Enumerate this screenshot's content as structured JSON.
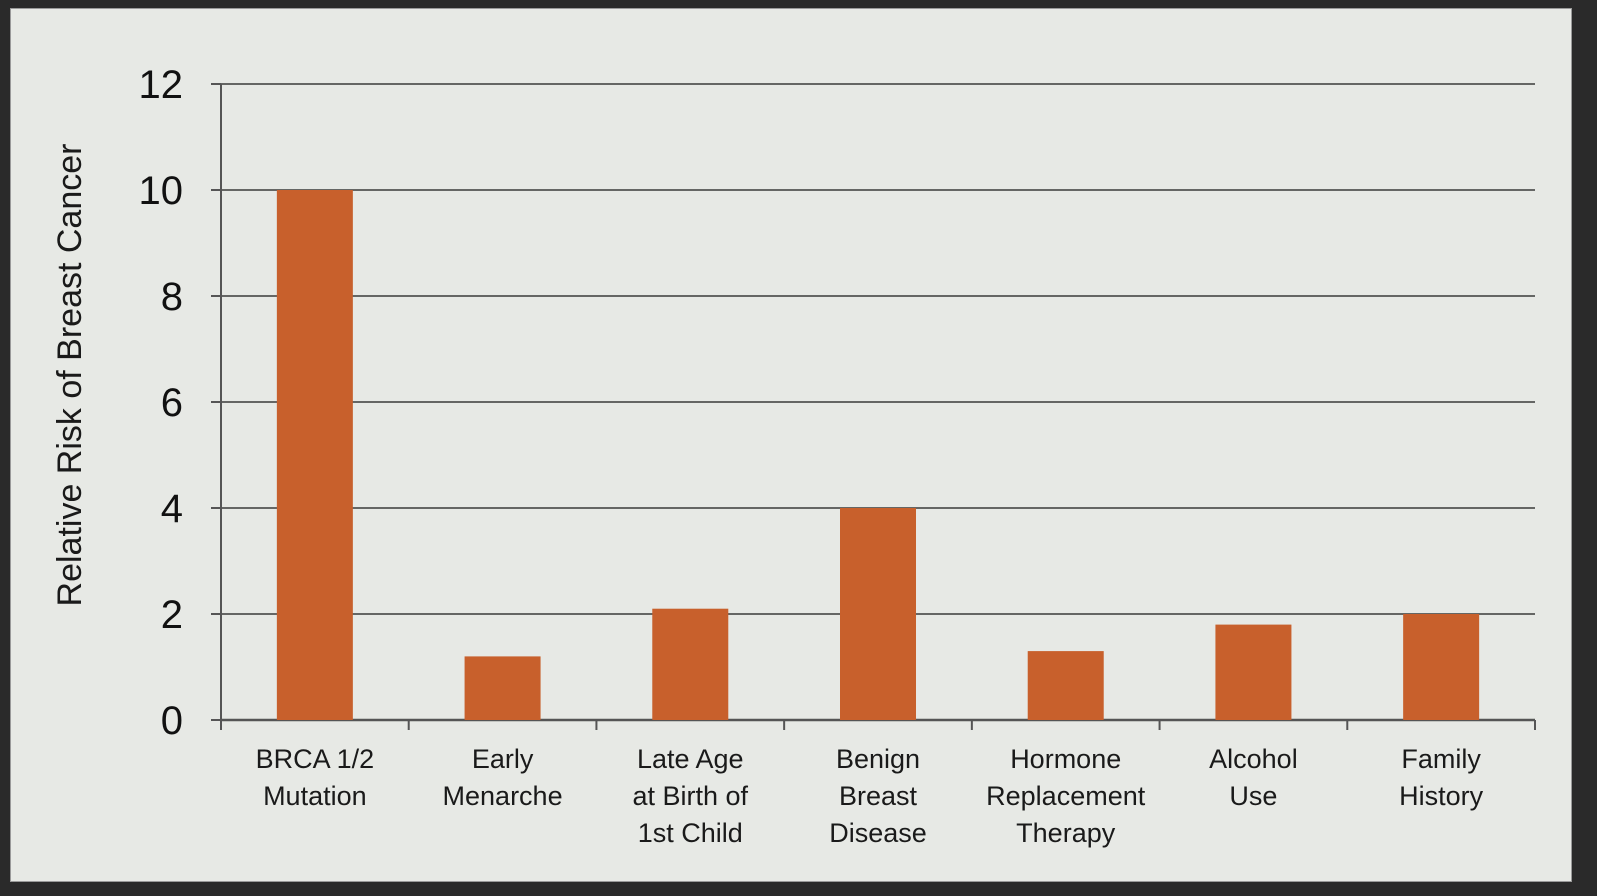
{
  "chart_data": {
    "type": "bar",
    "ylabel": "Relative Risk of Breast Cancer",
    "ylim": [
      0,
      12
    ],
    "yticks": [
      0,
      2,
      4,
      6,
      8,
      10,
      12
    ],
    "grid": true,
    "categories": [
      [
        "BRCA 1/2",
        "Mutation"
      ],
      [
        "Early",
        "Menarche"
      ],
      [
        "Late Age",
        "at Birth of",
        "1st Child"
      ],
      [
        "Benign",
        "Breast",
        "Disease"
      ],
      [
        "Hormone",
        "Replacement",
        "Therapy"
      ],
      [
        "Alcohol",
        "Use"
      ],
      [
        "Family",
        "History"
      ]
    ],
    "values": [
      10,
      1.2,
      2.1,
      4,
      1.3,
      1.8,
      2
    ],
    "colors": {
      "bar": "#c8602c",
      "grid": "#3a3a3a",
      "axis": "#555555",
      "background": "#e7e9e5"
    }
  }
}
